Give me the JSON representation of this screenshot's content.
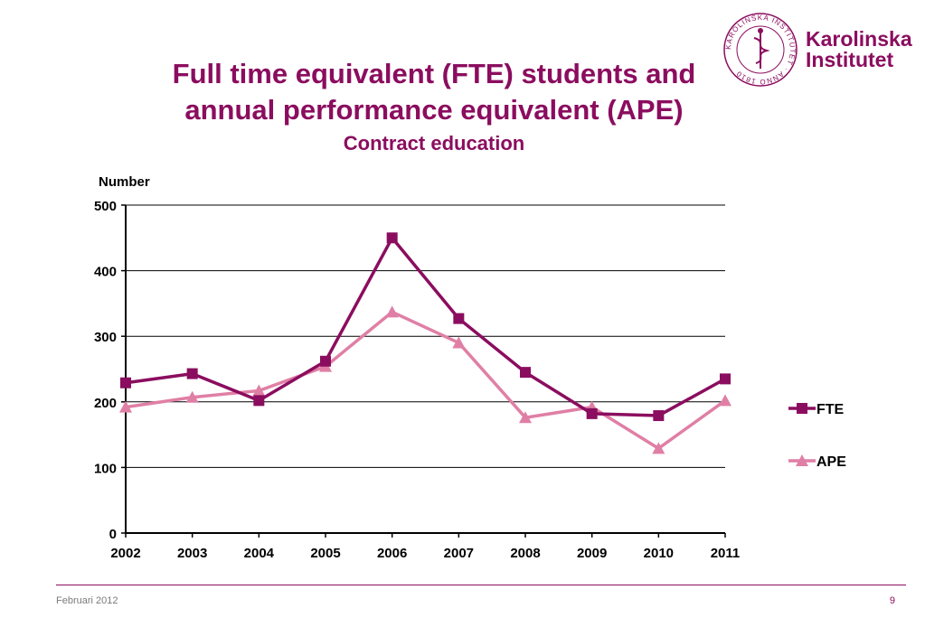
{
  "slide": {
    "title_line1": "Full time equivalent (FTE) students and",
    "title_line2": "annual performance equivalent (APE)",
    "subtitle": "Contract education",
    "brand_color": "#8b0d5f"
  },
  "logo": {
    "line1": "Karolinska",
    "line2": "Institutet",
    "seal_text": "KAROLINSKA INSTITUTET · ANNO 1810"
  },
  "footer": {
    "date": "Februari 2012",
    "page": "9"
  },
  "chart_data": {
    "type": "line",
    "ylabel": "Number",
    "x": [
      "2002",
      "2003",
      "2004",
      "2005",
      "2006",
      "2007",
      "2008",
      "2009",
      "2010",
      "2011"
    ],
    "ylim": [
      0,
      500
    ],
    "yticks": [
      "0",
      "100",
      "200",
      "300",
      "400",
      "500"
    ],
    "grid": true,
    "legend_position": "right",
    "series": [
      {
        "name": "FTE",
        "marker": "square",
        "color": "#8b0d5f",
        "values": [
          229,
          243,
          202,
          262,
          450,
          327,
          245,
          182,
          179,
          235
        ]
      },
      {
        "name": "APE",
        "marker": "triangle",
        "color": "#e07fa5",
        "values": [
          192,
          207,
          217,
          254,
          337,
          290,
          176,
          192,
          129,
          202
        ]
      }
    ]
  }
}
